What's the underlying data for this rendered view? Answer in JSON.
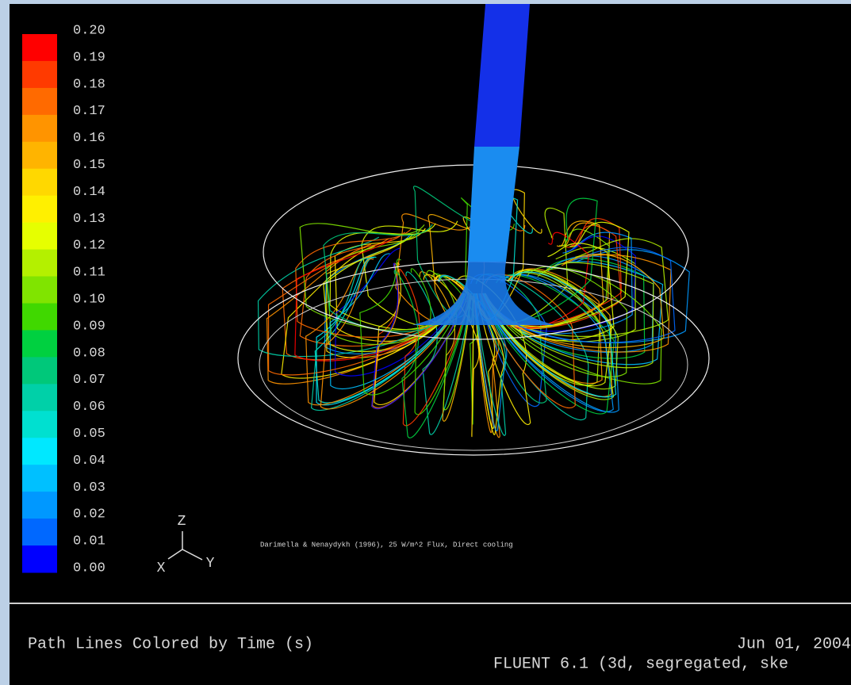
{
  "colorbar": {
    "labels": [
      "0.20",
      "0.19",
      "0.18",
      "0.17",
      "0.16",
      "0.15",
      "0.14",
      "0.13",
      "0.12",
      "0.11",
      "0.10",
      "0.09",
      "0.08",
      "0.07",
      "0.06",
      "0.05",
      "0.04",
      "0.03",
      "0.02",
      "0.01",
      "0.00"
    ],
    "colors": [
      "#ff0000",
      "#ff3a00",
      "#ff6a00",
      "#ff9400",
      "#ffb400",
      "#ffd800",
      "#fff000",
      "#e6ff00",
      "#b4f000",
      "#80e400",
      "#40d800",
      "#00d040",
      "#00c87a",
      "#00d0a8",
      "#00e0d0",
      "#00e8ff",
      "#00c0ff",
      "#0098ff",
      "#0068ff",
      "#0000ff"
    ]
  },
  "axes_triad": {
    "z": "Z",
    "x": "X",
    "y": "Y"
  },
  "annotation": "Darimella & Nenaydykh (1996), 25 W/m^2 Flux, Direct cooling",
  "footer": {
    "title": "Path Lines Colored by Time (s)",
    "date": "Jun 01, 2004",
    "version": "FLUENT 6.1 (3d, segregated, ske"
  }
}
